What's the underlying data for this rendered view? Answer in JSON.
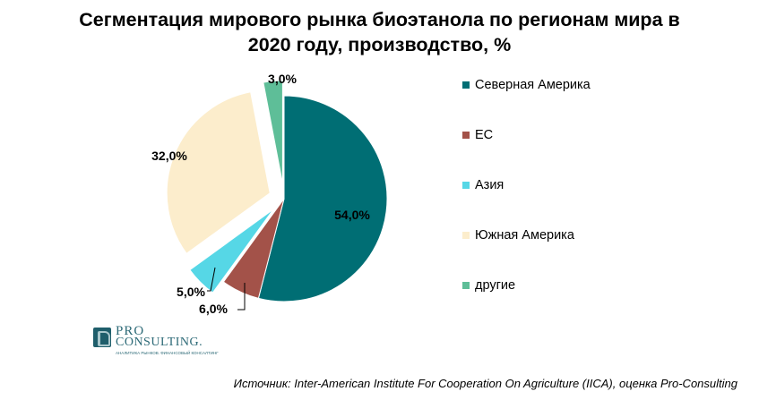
{
  "title": {
    "line1": "Сегментация мирового рынка биоэтанола по регионам мира в",
    "line2": "2020 году, производство, %"
  },
  "chart_data": {
    "type": "pie",
    "title": "Сегментация мирового рынка биоэтанола по регионам мира в 2020 году, производство, %",
    "categories": [
      "Северная Америка",
      "ЕС",
      "Азия",
      "Южная Америка",
      "другие"
    ],
    "values": [
      54.0,
      6.0,
      5.0,
      32.0,
      3.0
    ],
    "value_labels": [
      "54,0%",
      "6,0%",
      "5,0%",
      "32,0%",
      "3,0%"
    ],
    "colors": [
      "#006e74",
      "#a35249",
      "#56d7e6",
      "#fcedcc",
      "#5ebe98"
    ],
    "exploded": [
      false,
      false,
      true,
      true,
      true
    ],
    "start_angle_deg": 0,
    "direction": "clockwise",
    "legend_position": "right"
  },
  "logo": {
    "line1": "PRO",
    "line2": "CONSULTING.",
    "tagline": "АНАЛИТИКА РЫНКОВ. ФИНАНСОВЫЙ КОНСАЛТИНГ"
  },
  "source": "Источник: Inter-American Institute For Cooperation On Agriculture (IICA), оценка Pro-Consulting"
}
